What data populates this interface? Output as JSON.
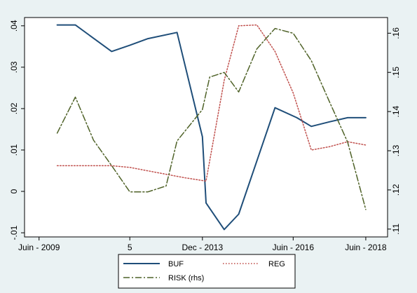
{
  "chart_data": {
    "type": "line",
    "xlabel": "",
    "ylabel": "",
    "y2label": "",
    "title": "",
    "x_ticks": [
      {
        "x": 2009.5,
        "label": "Juin - 2009"
      },
      {
        "x": 2012.0,
        "label": "5"
      },
      {
        "x": 2014.0,
        "label": "Dec - 2013"
      },
      {
        "x": 2016.5,
        "label": "Juin - 2016"
      },
      {
        "x": 2018.5,
        "label": "Juin - 2018"
      }
    ],
    "xlim": [
      2009.1,
      2019.1
    ],
    "ylim": [
      -0.011,
      0.042
    ],
    "y_ticks": [
      -0.01,
      0,
      0.01,
      0.02,
      0.03,
      0.04
    ],
    "y_tick_labels": [
      "-.01",
      "0",
      ".01",
      ".02",
      ".03",
      ".04"
    ],
    "y2lim": [
      0.108,
      0.164
    ],
    "y2_ticks": [
      0.11,
      0.12,
      0.13,
      0.14,
      0.15,
      0.16
    ],
    "y2_tick_labels": [
      ".11",
      ".12",
      ".13",
      ".14",
      ".15",
      ".16"
    ],
    "grid": false,
    "legend_position": "bottom",
    "series": [
      {
        "name": "BUF",
        "axis": "left",
        "color": "#1f4e79",
        "style": "solid",
        "points": [
          [
            2010.0,
            0.0402
          ],
          [
            2010.5,
            0.0402
          ],
          [
            2011.5,
            0.0338
          ],
          [
            2012.0,
            0.0353
          ],
          [
            2012.5,
            0.0369
          ],
          [
            2013.3,
            0.0384
          ],
          [
            2014.0,
            0.0132
          ],
          [
            2014.1,
            -0.0028
          ],
          [
            2014.6,
            -0.0092
          ],
          [
            2015.0,
            -0.0055
          ],
          [
            2016.0,
            0.0202
          ],
          [
            2016.6,
            0.0178
          ],
          [
            2017.0,
            0.0157
          ],
          [
            2017.5,
            0.0168
          ],
          [
            2018.0,
            0.0178
          ],
          [
            2018.5,
            0.0178
          ]
        ]
      },
      {
        "name": "REG",
        "axis": "left",
        "color": "#c0504d",
        "style": "dotted",
        "points": [
          [
            2010.0,
            0.0062
          ],
          [
            2011.0,
            0.0062
          ],
          [
            2011.5,
            0.0062
          ],
          [
            2012.0,
            0.0058
          ],
          [
            2012.6,
            0.0048
          ],
          [
            2013.5,
            0.0033
          ],
          [
            2014.1,
            0.0025
          ],
          [
            2014.6,
            0.0268
          ],
          [
            2015.0,
            0.04
          ],
          [
            2015.5,
            0.0402
          ],
          [
            2016.0,
            0.0338
          ],
          [
            2016.5,
            0.0238
          ],
          [
            2017.0,
            0.01
          ],
          [
            2017.5,
            0.0108
          ],
          [
            2018.0,
            0.012
          ],
          [
            2018.5,
            0.0112
          ]
        ]
      },
      {
        "name": "RISK (rhs)",
        "axis": "right",
        "color": "#4f6228",
        "style": "dashdot",
        "points": [
          [
            2010.0,
            0.1345
          ],
          [
            2010.5,
            0.1437
          ],
          [
            2011.0,
            0.1327
          ],
          [
            2011.5,
            0.1262
          ],
          [
            2012.0,
            0.1195
          ],
          [
            2012.5,
            0.1195
          ],
          [
            2013.0,
            0.121
          ],
          [
            2013.3,
            0.1325
          ],
          [
            2014.0,
            0.1405
          ],
          [
            2014.2,
            0.1488
          ],
          [
            2014.6,
            0.15
          ],
          [
            2015.0,
            0.145
          ],
          [
            2015.5,
            0.156
          ],
          [
            2016.0,
            0.1612
          ],
          [
            2016.5,
            0.16
          ],
          [
            2017.0,
            0.153
          ],
          [
            2017.5,
            0.1425
          ],
          [
            2018.0,
            0.1322
          ],
          [
            2018.5,
            0.115
          ]
        ]
      }
    ]
  }
}
